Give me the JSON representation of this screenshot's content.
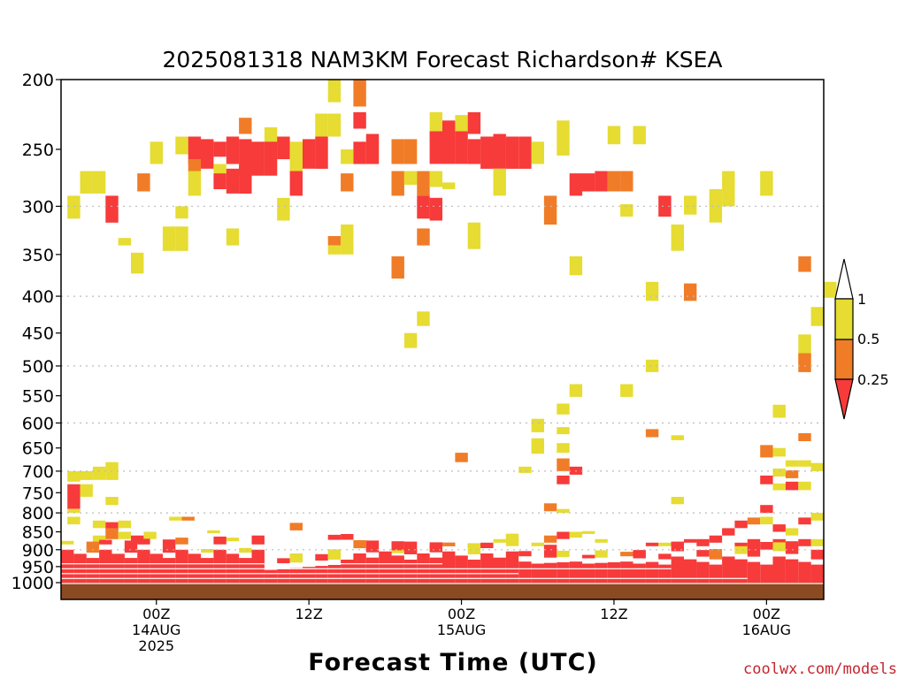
{
  "colors": {
    "ri_lt_025": "#f73a3a",
    "ri_025_05": "#f07c28",
    "ri_05_1": "#e6dc32",
    "ground": "#8b4a22",
    "grid": "#bbbbbb"
  },
  "chart_data": {
    "type": "heatmap",
    "title": "2025081318 NAM3KM Forecast Richardson# KSEA",
    "xlabel": "Forecast Time (UTC)",
    "ylabel": "",
    "credit": "coolwx.com/models",
    "y_scale": "log-pressure (inverted)",
    "ylim": [
      1000,
      200
    ],
    "yticks": [
      200,
      250,
      300,
      350,
      400,
      450,
      500,
      550,
      600,
      650,
      700,
      750,
      800,
      850,
      900,
      950,
      1000
    ],
    "grid_levels": [
      300,
      400,
      500,
      600,
      700,
      800,
      900
    ],
    "grid": "horizontal dotted",
    "x_unit": "hours since 2025-08-13 18Z",
    "xlim": [
      -1.5,
      58.5
    ],
    "xticks": [
      {
        "x": 6,
        "lines": [
          "00Z",
          "14AUG",
          "2025"
        ]
      },
      {
        "x": 18,
        "lines": [
          "12Z"
        ]
      },
      {
        "x": 30,
        "lines": [
          "00Z",
          "15AUG"
        ]
      },
      {
        "x": 42,
        "lines": [
          "12Z"
        ]
      },
      {
        "x": 54,
        "lines": [
          "00Z",
          "16AUG"
        ]
      }
    ],
    "colorbar": {
      "placement": "right",
      "labels": [
        "1",
        "0.5",
        "0.25"
      ],
      "bins": [
        "<0.25",
        "0.25-0.5",
        "0.5-1"
      ]
    },
    "legend": "colorbar at right"
  }
}
